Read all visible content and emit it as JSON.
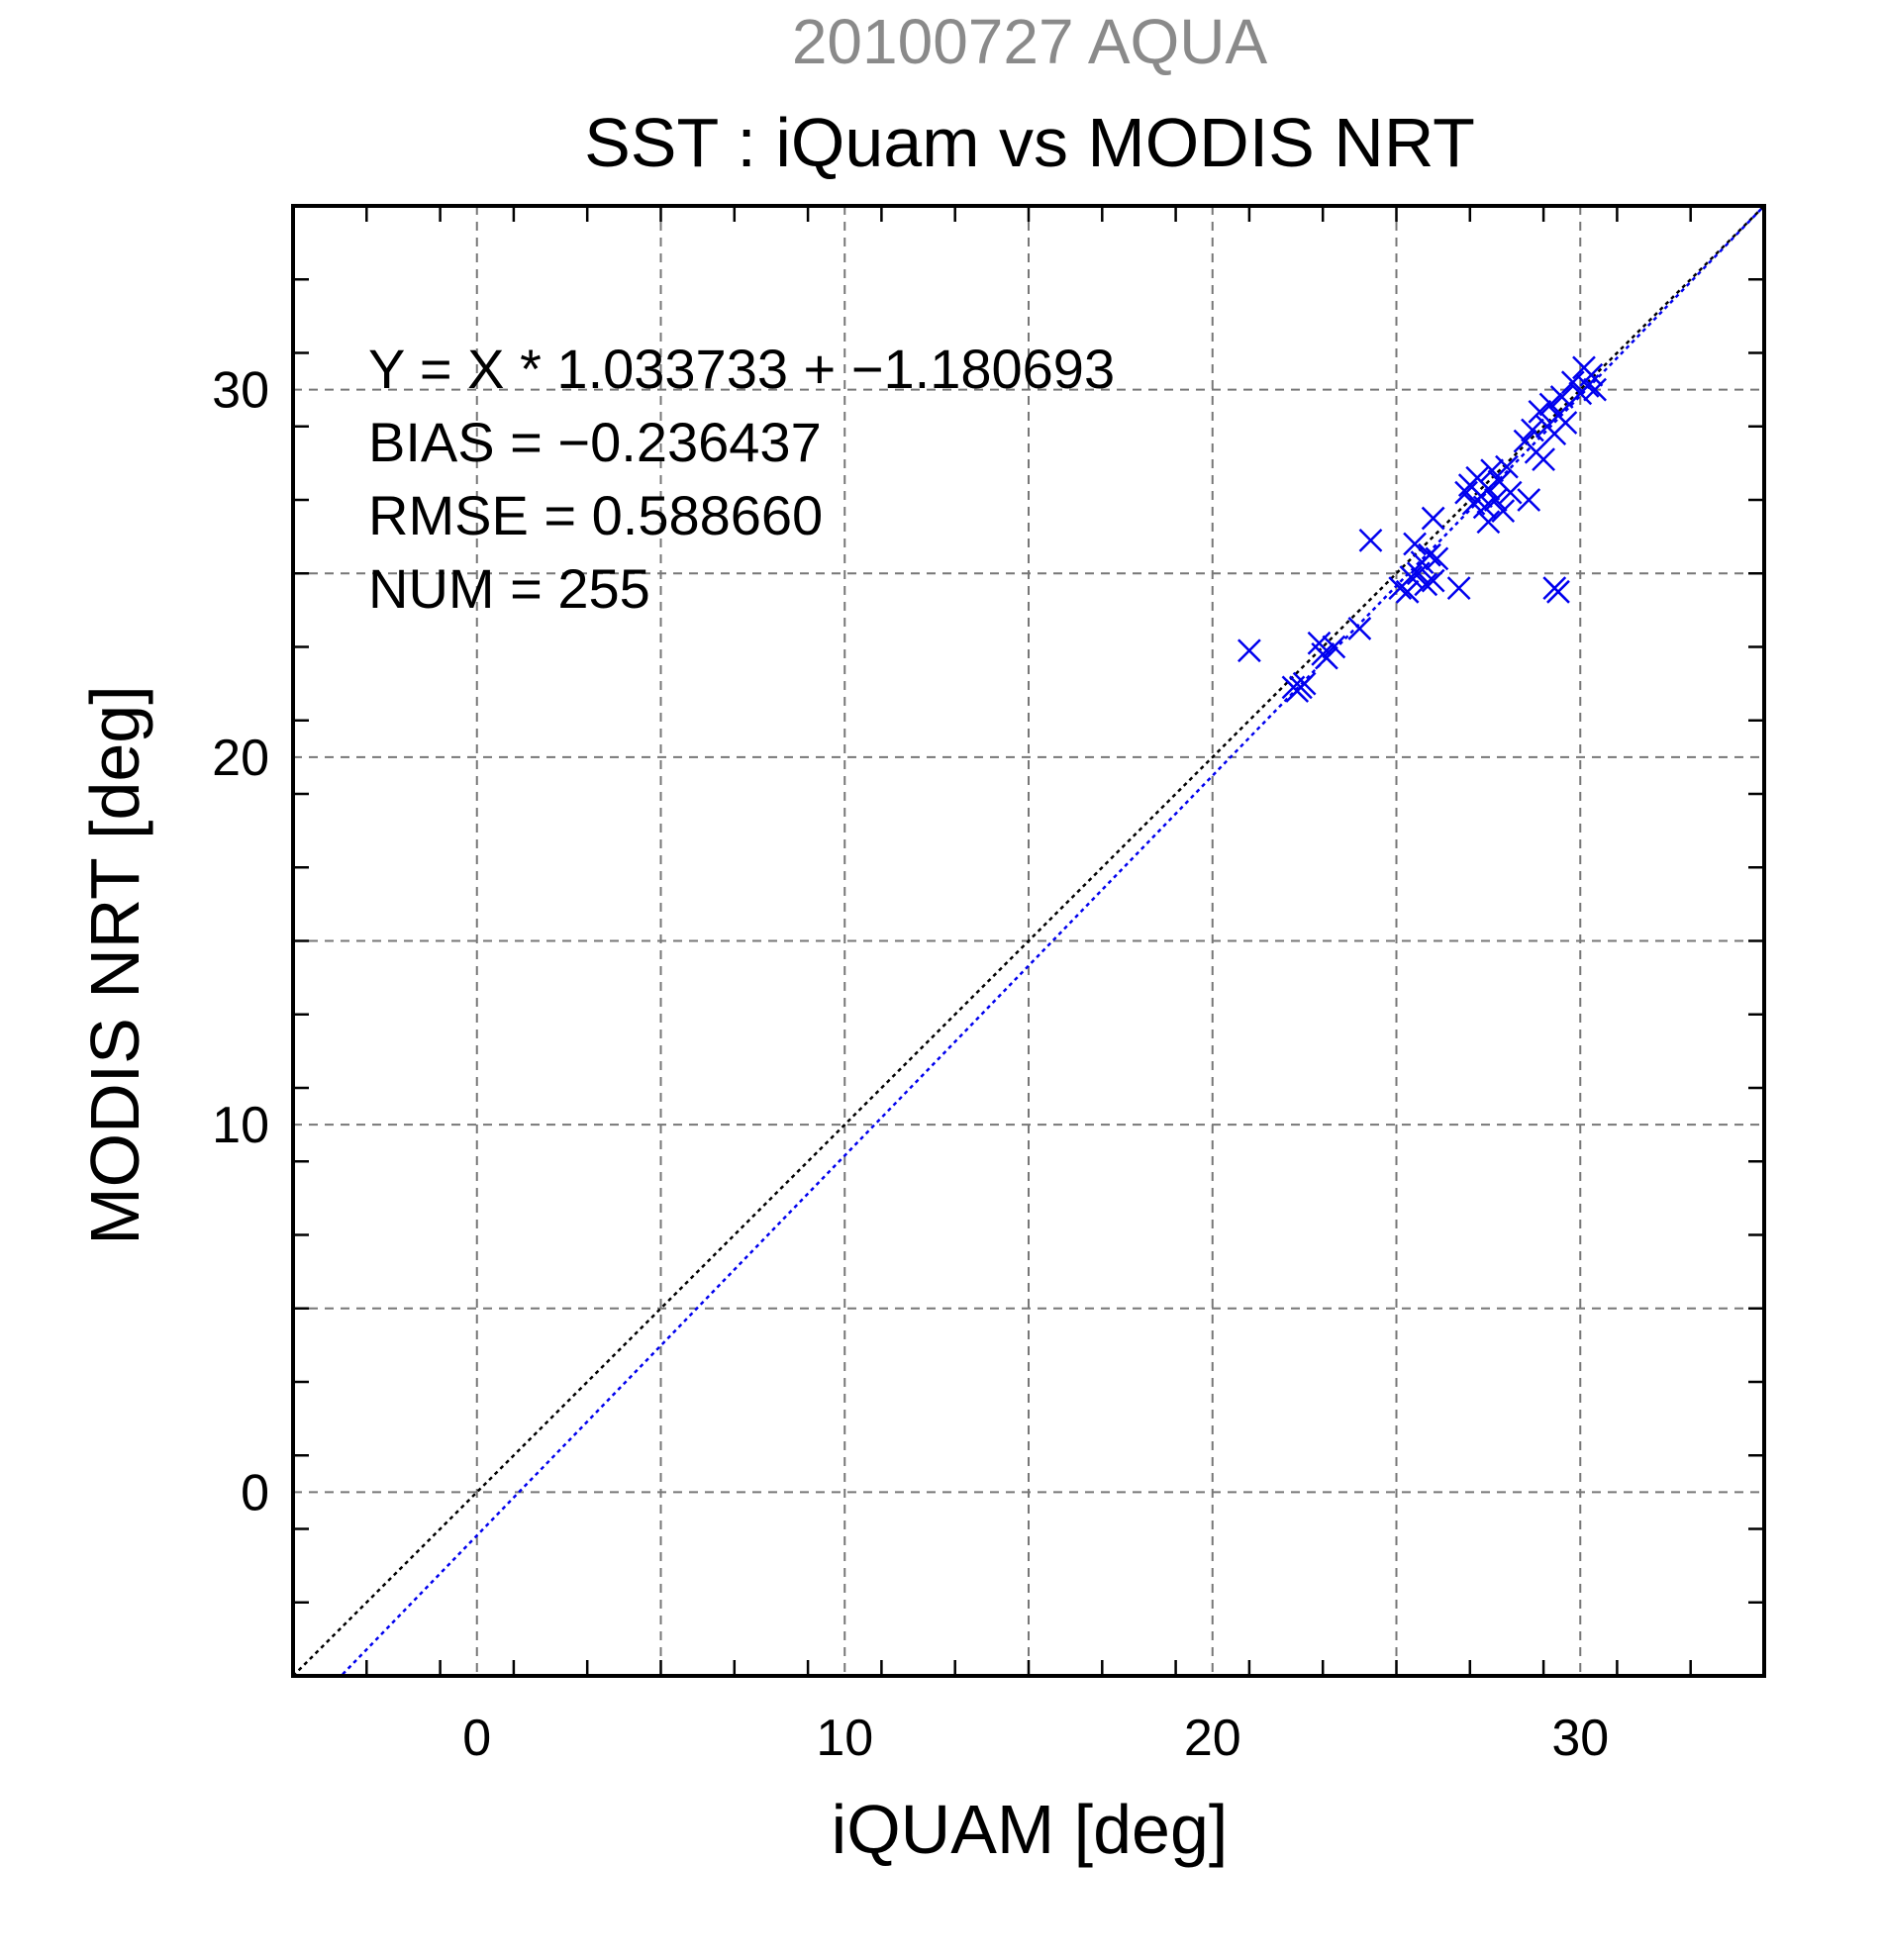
{
  "chart_data": {
    "type": "scatter",
    "super_title": "20100727 AQUA",
    "title": "SST : iQuam vs MODIS NRT",
    "xlabel": "iQUAM [deg]",
    "ylabel": "MODIS NRT [deg]",
    "xlim": [
      -5,
      35
    ],
    "ylim": [
      -5,
      35
    ],
    "xticks": [
      0,
      10,
      20,
      30
    ],
    "yticks": [
      0,
      10,
      20,
      30
    ],
    "xtick_labels": [
      "0",
      "10",
      "20",
      "30"
    ],
    "ytick_labels": [
      "0",
      "10",
      "20",
      "30"
    ],
    "grid": true,
    "marker": "x",
    "marker_color": "#0000ee",
    "stats_text": [
      "Y = X * 1.033733 + −1.180693",
      "BIAS = −0.236437",
      "RMSE = 0.588660",
      "NUM = 255"
    ],
    "lines": [
      {
        "kind": "one-to-one",
        "slope": 1.0,
        "intercept": 0.0,
        "color": "#000000",
        "style": "dotted"
      },
      {
        "kind": "regression",
        "slope": 1.033733,
        "intercept": -1.180693,
        "color": "#0000ee",
        "style": "dotted"
      }
    ],
    "points": [
      [
        21.0,
        22.9
      ],
      [
        22.2,
        21.9
      ],
      [
        22.3,
        21.8
      ],
      [
        22.4,
        21.9
      ],
      [
        22.5,
        22.0
      ],
      [
        22.9,
        23.1
      ],
      [
        23.0,
        22.8
      ],
      [
        23.1,
        22.7
      ],
      [
        23.3,
        23.0
      ],
      [
        24.0,
        23.5
      ],
      [
        24.3,
        25.9
      ],
      [
        25.1,
        24.6
      ],
      [
        25.3,
        24.5
      ],
      [
        25.4,
        24.9
      ],
      [
        25.5,
        25.8
      ],
      [
        25.6,
        25.0
      ],
      [
        25.7,
        25.3
      ],
      [
        25.8,
        24.7
      ],
      [
        25.9,
        25.5
      ],
      [
        26.0,
        24.8
      ],
      [
        26.0,
        26.5
      ],
      [
        26.1,
        25.4
      ],
      [
        26.7,
        24.6
      ],
      [
        26.9,
        27.2
      ],
      [
        27.0,
        27.4
      ],
      [
        27.1,
        26.9
      ],
      [
        27.2,
        27.6
      ],
      [
        27.3,
        27.1
      ],
      [
        27.4,
        26.8
      ],
      [
        27.5,
        27.3
      ],
      [
        27.5,
        26.4
      ],
      [
        27.6,
        27.8
      ],
      [
        27.7,
        27.0
      ],
      [
        27.8,
        27.5
      ],
      [
        27.9,
        26.7
      ],
      [
        28.0,
        27.9
      ],
      [
        28.1,
        27.2
      ],
      [
        28.5,
        28.6
      ],
      [
        28.6,
        27.0
      ],
      [
        28.7,
        28.9
      ],
      [
        28.8,
        28.3
      ],
      [
        28.9,
        29.4
      ],
      [
        29.0,
        28.1
      ],
      [
        29.1,
        29.0
      ],
      [
        29.2,
        29.6
      ],
      [
        29.3,
        24.6
      ],
      [
        29.4,
        24.5
      ],
      [
        29.3,
        28.8
      ],
      [
        29.4,
        29.3
      ],
      [
        29.5,
        29.8
      ],
      [
        29.6,
        29.1
      ],
      [
        29.8,
        30.2
      ],
      [
        30.0,
        29.9
      ],
      [
        30.1,
        30.6
      ],
      [
        30.2,
        30.1
      ],
      [
        30.3,
        30.4
      ],
      [
        30.4,
        30.0
      ]
    ]
  }
}
